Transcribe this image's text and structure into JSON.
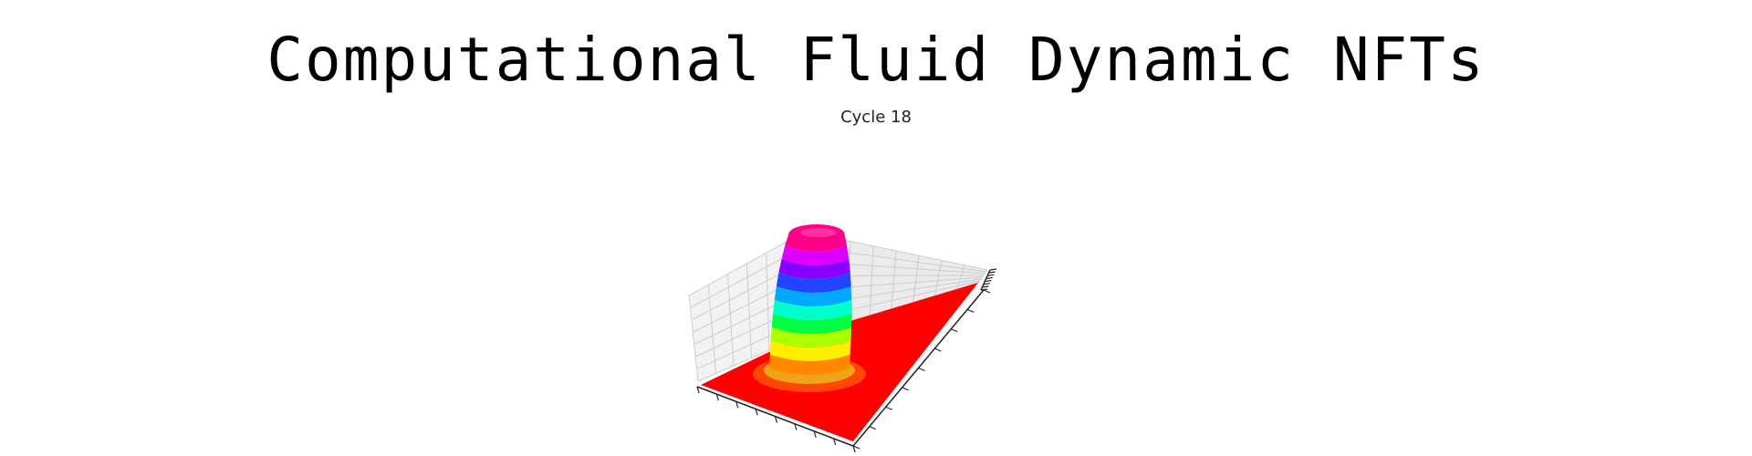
{
  "header": {
    "title": "Computational Fluid Dynamic NFTs"
  },
  "figure": {
    "caption": "Cycle 18",
    "plot_type": "3d-surface",
    "colormap": "hsv",
    "floor_color": "#ff0000",
    "pane_color": "#f2f2f2",
    "grid_color": "#cccccc",
    "band_colors": [
      "#ff0000",
      "#ff8800",
      "#ffee00",
      "#aaff00",
      "#00ff44",
      "#00ffcc",
      "#00aaff",
      "#2244ff",
      "#8800ff",
      "#dd00ff",
      "#ff0088"
    ]
  }
}
